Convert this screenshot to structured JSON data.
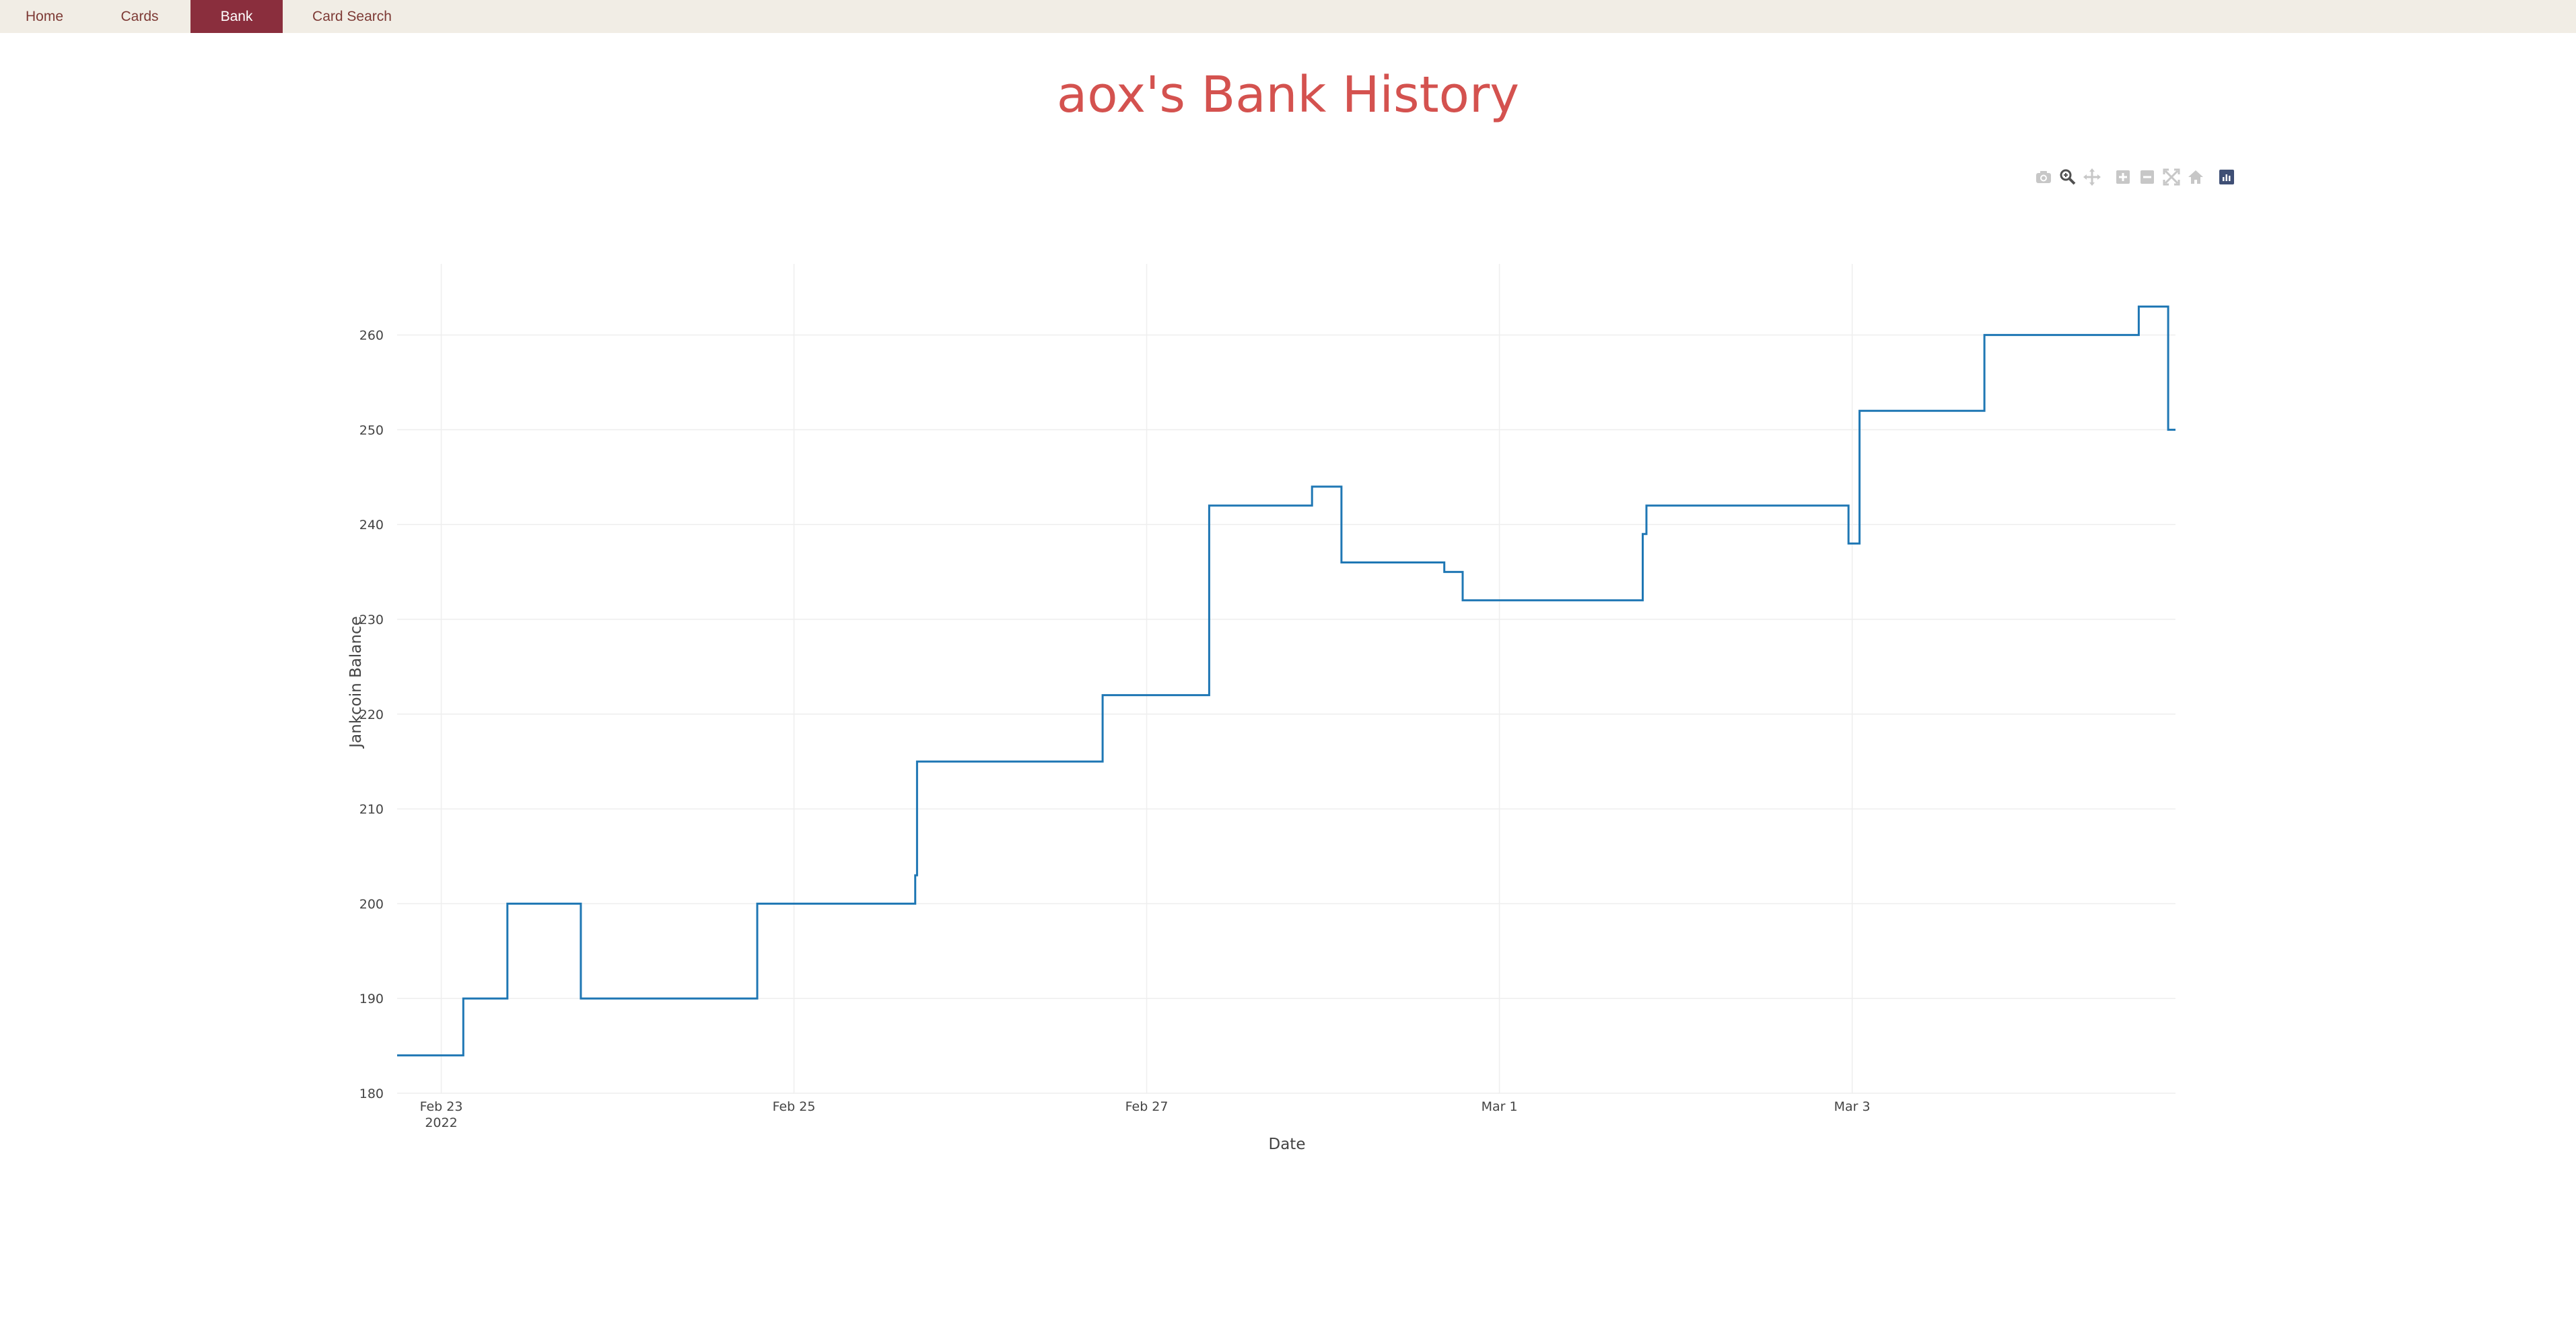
{
  "nav": {
    "items": [
      {
        "label": "Home",
        "active": false
      },
      {
        "label": "Cards",
        "active": false
      },
      {
        "label": "Bank",
        "active": true
      },
      {
        "label": "Card Search",
        "active": false
      }
    ]
  },
  "page": {
    "title": "aox's Bank History"
  },
  "modebar": {
    "buttons": [
      "camera-icon",
      "zoom-icon",
      "pan-icon",
      "zoom-in-icon",
      "zoom-out-icon",
      "autoscale-icon",
      "reset-axes-icon",
      "plotly-logo-icon"
    ]
  },
  "colors": {
    "line": "#1f77b4",
    "title": "#d4524f",
    "nav_bg": "#f1ede5",
    "nav_active": "#8a2e3d",
    "grid": "#eeeeee"
  },
  "chart_data": {
    "type": "line",
    "line_shape": "step",
    "title": "aox's Bank History",
    "xlabel": "Date",
    "ylabel": "Jankcoin Balance",
    "ylim": [
      180,
      267.5
    ],
    "xlim": [
      "2022-02-22 18:00",
      "2022-03-04 20:00"
    ],
    "x_ticks": [
      {
        "date": "2022-02-23 00:00",
        "label": "Feb 23",
        "sublabel": "2022"
      },
      {
        "date": "2022-02-25 00:00",
        "label": "Feb 25",
        "sublabel": ""
      },
      {
        "date": "2022-02-27 00:00",
        "label": "Feb 27",
        "sublabel": ""
      },
      {
        "date": "2022-03-01 00:00",
        "label": "Mar 1",
        "sublabel": ""
      },
      {
        "date": "2022-03-03 00:00",
        "label": "Mar 3",
        "sublabel": ""
      }
    ],
    "y_ticks": [
      180,
      190,
      200,
      210,
      220,
      230,
      240,
      250,
      260
    ],
    "grid": true,
    "series": [
      {
        "x": [
          "2022-02-22 18:00",
          "2022-02-23 03:00",
          "2022-02-23 09:00",
          "2022-02-23 19:00",
          "2022-02-24 19:00",
          "2022-02-25 16:30",
          "2022-02-25 16:45",
          "2022-02-26 18:00",
          "2022-02-27 08:30",
          "2022-02-27 22:30",
          "2022-02-28 02:30",
          "2022-02-28 16:30",
          "2022-02-28 19:00",
          "2022-03-01 19:30",
          "2022-03-01 20:00",
          "2022-03-02 23:30",
          "2022-03-03 01:00",
          "2022-03-03 18:00",
          "2022-03-04 15:00",
          "2022-03-04 19:00",
          "2022-03-04 20:00"
        ],
        "y": [
          184,
          190,
          200,
          190,
          200,
          203,
          215,
          222,
          242,
          244,
          236,
          235,
          232,
          239,
          242,
          238,
          252,
          260,
          263,
          250,
          250
        ]
      }
    ]
  }
}
